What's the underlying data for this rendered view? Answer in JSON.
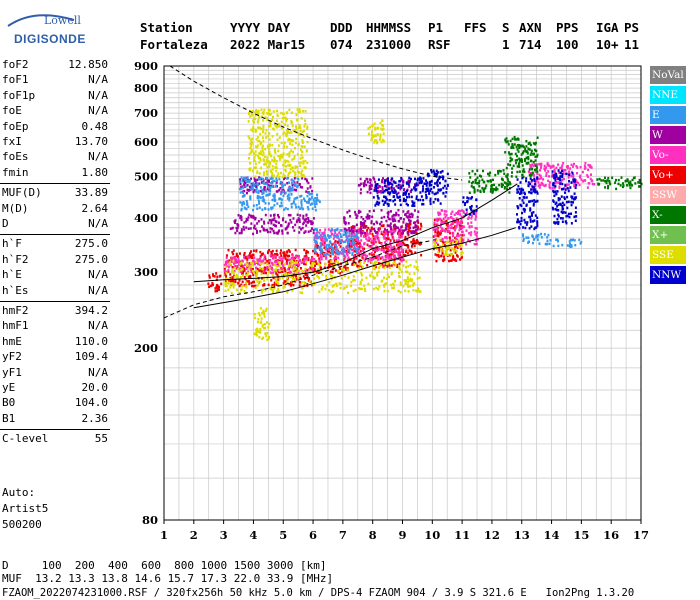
{
  "logo": {
    "line1": "Lowell",
    "line2": "DIGISONDE"
  },
  "header": {
    "cols": [
      {
        "label": "Station",
        "value": "Fortaleza"
      },
      {
        "label": "YYYY DAY",
        "value": "2022 Mar15"
      },
      {
        "label": "DDD",
        "value": "074"
      },
      {
        "label": "HHMMSS",
        "value": "231000"
      },
      {
        "label": "P1",
        "value": "RSF"
      },
      {
        "label": "FFS",
        "value": ""
      },
      {
        "label": "S",
        "value": "1"
      },
      {
        "label": "AXN",
        "value": "714"
      },
      {
        "label": "PPS",
        "value": "100"
      },
      {
        "label": "IGA",
        "value": "10+"
      },
      {
        "label": "PS",
        "value": "11"
      }
    ]
  },
  "parameters": {
    "group1": [
      {
        "name": "foF2",
        "value": "12.850"
      },
      {
        "name": "foF1",
        "value": "N/A"
      },
      {
        "name": "foF1p",
        "value": "N/A"
      },
      {
        "name": "foE",
        "value": "N/A"
      },
      {
        "name": "foEp",
        "value": "0.48"
      },
      {
        "name": "fxI",
        "value": "13.70"
      },
      {
        "name": "foEs",
        "value": "N/A"
      },
      {
        "name": "fmin",
        "value": "1.80"
      }
    ],
    "group2": [
      {
        "name": "MUF(D)",
        "value": "33.89"
      },
      {
        "name": "M(D)",
        "value": "2.64"
      },
      {
        "name": "D",
        "value": "N/A"
      }
    ],
    "group3": [
      {
        "name": "h`F",
        "value": "275.0"
      },
      {
        "name": "h`F2",
        "value": "275.0"
      },
      {
        "name": "h`E",
        "value": "N/A"
      },
      {
        "name": "h`Es",
        "value": "N/A"
      }
    ],
    "group4": [
      {
        "name": "hmF2",
        "value": "394.2"
      },
      {
        "name": "hmF1",
        "value": "N/A"
      },
      {
        "name": "hmE",
        "value": "110.0"
      },
      {
        "name": "yF2",
        "value": "109.4"
      },
      {
        "name": "yF1",
        "value": "N/A"
      },
      {
        "name": "yE",
        "value": "20.0"
      },
      {
        "name": "B0",
        "value": "104.0"
      },
      {
        "name": "B1",
        "value": "2.36"
      }
    ],
    "group5": [
      {
        "name": "C-level",
        "value": "55"
      }
    ]
  },
  "auto": {
    "line1": "Auto:",
    "line2": "Artist5",
    "line3": "500200"
  },
  "footer": {
    "d_row": "D     100  200  400  600  800 1000 1500 3000 [km]",
    "muf_row": "MUF  13.2 13.3 13.8 14.6 15.7 17.3 22.0 33.9 [MHz]",
    "file_row": "FZAOM_2022074231000.RSF / 320fx256h 50 kHz 5.0 km / DPS-4 FZAOM 904 / 3.9 S 321.6 E   Ion2Png 1.3.20"
  },
  "legend": [
    {
      "label": "NoVal",
      "color": "#808080"
    },
    {
      "label": "NNE",
      "color": "#00e5ff"
    },
    {
      "label": "E",
      "color": "#3399ee"
    },
    {
      "label": "W",
      "color": "#a000a0"
    },
    {
      "label": "Vo-",
      "color": "#ff30c0"
    },
    {
      "label": "Vo+",
      "color": "#ee0000"
    },
    {
      "label": "SSW",
      "color": "#ffaaaa"
    },
    {
      "label": "X-",
      "color": "#007700"
    },
    {
      "label": "X+",
      "color": "#70c050"
    },
    {
      "label": "SSE",
      "color": "#dddd00"
    },
    {
      "label": "NNW",
      "color": "#0000cc"
    }
  ],
  "chart_data": {
    "type": "scatter",
    "xlim": [
      1,
      17
    ],
    "ylim": [
      80,
      900
    ],
    "x_ticks": [
      1,
      2,
      3,
      4,
      5,
      6,
      7,
      8,
      9,
      10,
      11,
      12,
      13,
      14,
      15,
      16,
      17
    ],
    "y_ticks": [
      80,
      200,
      300,
      400,
      500,
      600,
      700,
      800,
      900
    ],
    "y_scale": "log",
    "grid": true,
    "legend_position": "right",
    "series": [
      {
        "color": "#ee0000",
        "clusters": [
          [
            2.4,
            2.9,
            270,
            300
          ],
          [
            3,
            6,
            280,
            340
          ],
          [
            6,
            7.2,
            300,
            360
          ],
          [
            7.2,
            9,
            310,
            390
          ],
          [
            9,
            9.6,
            330,
            400
          ],
          [
            10,
            11,
            320,
            400
          ]
        ]
      },
      {
        "color": "#ff30c0",
        "clusters": [
          [
            3,
            6,
            300,
            330
          ],
          [
            6,
            9,
            320,
            380
          ],
          [
            10,
            11.5,
            350,
            420
          ],
          [
            13.2,
            15.4,
            470,
            540
          ]
        ]
      },
      {
        "color": "#a000a0",
        "clusters": [
          [
            3.2,
            6,
            370,
            410
          ],
          [
            3.5,
            6,
            460,
            500
          ],
          [
            7,
            9.5,
            370,
            420
          ],
          [
            7.5,
            9.5,
            460,
            500
          ]
        ]
      },
      {
        "color": "#3399ee",
        "clusters": [
          [
            3.5,
            6.2,
            420,
            460
          ],
          [
            3.5,
            5.5,
            460,
            500
          ],
          [
            6,
            7.5,
            330,
            380
          ],
          [
            13,
            14,
            350,
            370
          ],
          [
            14,
            15,
            345,
            360
          ]
        ]
      },
      {
        "color": "#dddd00",
        "clusters": [
          [
            3,
            9.6,
            270,
            320
          ],
          [
            3.8,
            5.8,
            500,
            720
          ],
          [
            4,
            4.5,
            210,
            250
          ],
          [
            7.8,
            8.4,
            600,
            680
          ],
          [
            10,
            11,
            330,
            360
          ]
        ]
      },
      {
        "color": "#007700",
        "clusters": [
          [
            11.2,
            12.6,
            460,
            520
          ],
          [
            12.4,
            13.5,
            500,
            620
          ],
          [
            15.5,
            17,
            470,
            500
          ]
        ]
      },
      {
        "color": "#0000cc",
        "clusters": [
          [
            8,
            9.8,
            430,
            500
          ],
          [
            9.8,
            10.5,
            430,
            520
          ],
          [
            11,
            11.5,
            410,
            450
          ],
          [
            12.8,
            13.5,
            380,
            500
          ],
          [
            14,
            14.8,
            390,
            520
          ]
        ]
      }
    ],
    "traces": [
      {
        "style": "dashed",
        "x": [
          1.2,
          2,
          3,
          4,
          5,
          6,
          7,
          8,
          9,
          10,
          11
        ],
        "y": [
          900,
          830,
          760,
          700,
          650,
          610,
          575,
          545,
          520,
          500,
          490
        ]
      },
      {
        "style": "dashed",
        "x": [
          1,
          2,
          3,
          4,
          5,
          6,
          7,
          8,
          9,
          10
        ],
        "y": [
          235,
          252,
          263,
          270,
          280,
          295,
          310,
          325,
          345,
          355
        ]
      },
      {
        "style": "solid",
        "x": [
          2,
          3,
          4,
          5,
          6,
          7,
          8,
          9,
          10,
          11,
          12,
          12.8
        ],
        "y": [
          248,
          255,
          262,
          270,
          282,
          295,
          310,
          325,
          340,
          350,
          365,
          380
        ]
      },
      {
        "style": "solid",
        "x": [
          2,
          3,
          4,
          5,
          6,
          7,
          8,
          9,
          10,
          11,
          12,
          12.85
        ],
        "y": [
          285,
          288,
          290,
          293,
          300,
          315,
          340,
          355,
          380,
          400,
          440,
          480
        ]
      }
    ]
  }
}
